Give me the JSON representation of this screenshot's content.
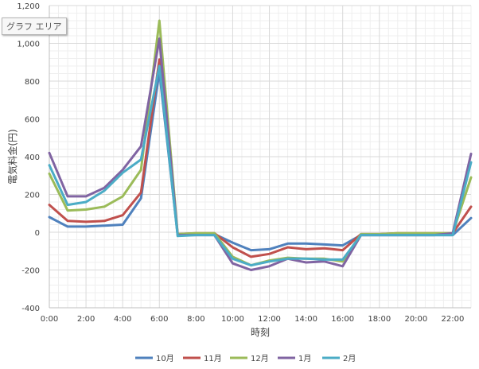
{
  "ui": {
    "area_label": "グラフ エリア"
  },
  "chart_data": {
    "type": "line",
    "title": "",
    "xlabel": "時刻",
    "ylabel": "電気料金(円)",
    "x": [
      0,
      1,
      2,
      3,
      4,
      5,
      6,
      7,
      8,
      9,
      10,
      11,
      12,
      13,
      14,
      15,
      16,
      17,
      18,
      19,
      20,
      21,
      22,
      23
    ],
    "x_tick_labels": [
      "0:00",
      "2:00",
      "4:00",
      "6:00",
      "8:00",
      "10:00",
      "12:00",
      "14:00",
      "16:00",
      "18:00",
      "20:00",
      "22:00"
    ],
    "x_tick_positions": [
      0,
      2,
      4,
      6,
      8,
      10,
      12,
      14,
      16,
      18,
      20,
      22
    ],
    "xlim": [
      0,
      23
    ],
    "ylim": [
      -400,
      1200
    ],
    "y_ticks": [
      -400,
      -200,
      0,
      200,
      400,
      600,
      800,
      1000,
      1200
    ],
    "y_tick_labels": [
      "-400",
      "-200",
      "0",
      "200",
      "400",
      "600",
      "800",
      "1,000",
      "1,200"
    ],
    "grid": true,
    "legend_position": "bottom",
    "series": [
      {
        "name": "10月",
        "color": "#4f81bd",
        "values": [
          80,
          30,
          30,
          35,
          40,
          180,
          850,
          -15,
          -10,
          -10,
          -55,
          -95,
          -90,
          -60,
          -60,
          -65,
          -70,
          -15,
          -15,
          -15,
          -15,
          -15,
          -15,
          75
        ]
      },
      {
        "name": "11月",
        "color": "#c0504d",
        "values": [
          145,
          60,
          55,
          60,
          90,
          210,
          915,
          -10,
          -5,
          -5,
          -80,
          -130,
          -115,
          -80,
          -90,
          -85,
          -95,
          -10,
          -10,
          -5,
          -5,
          -5,
          -5,
          135
        ]
      },
      {
        "name": "12月",
        "color": "#9bbb59",
        "values": [
          310,
          115,
          120,
          135,
          190,
          330,
          1120,
          -10,
          -5,
          -5,
          -130,
          -175,
          -150,
          -135,
          -140,
          -140,
          -155,
          -10,
          -10,
          -5,
          -5,
          -5,
          -5,
          290
        ]
      },
      {
        "name": "1月",
        "color": "#8064a2",
        "values": [
          420,
          190,
          190,
          235,
          330,
          455,
          1025,
          -15,
          -15,
          -15,
          -165,
          -200,
          -180,
          -140,
          -160,
          -155,
          -180,
          -15,
          -15,
          -15,
          -15,
          -15,
          -5,
          415
        ]
      },
      {
        "name": "2月",
        "color": "#4bacc6",
        "values": [
          355,
          145,
          160,
          220,
          315,
          385,
          880,
          -20,
          -15,
          -15,
          -140,
          -175,
          -155,
          -140,
          -140,
          -145,
          -145,
          -15,
          -15,
          -15,
          -15,
          -15,
          -15,
          370
        ]
      }
    ]
  }
}
